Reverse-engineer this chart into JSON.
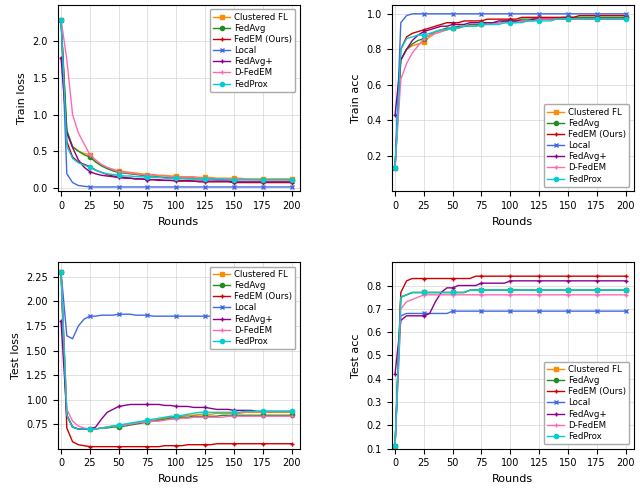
{
  "methods": [
    "Clustered FL",
    "FedAvg",
    "FedEM (Ours)",
    "Local",
    "FedAvg+",
    "D-FedEM",
    "FedProx"
  ],
  "colors": [
    "#ff8c00",
    "#228B22",
    "#cc0000",
    "#4169e1",
    "#8b008b",
    "#ff69b4",
    "#00ced1"
  ],
  "markers": [
    "s",
    "o",
    "+",
    "x",
    "+",
    "+",
    "o"
  ],
  "marker_sizes": [
    4,
    4,
    5,
    5,
    5,
    5,
    4
  ],
  "rounds": [
    0,
    5,
    10,
    15,
    20,
    25,
    30,
    35,
    40,
    45,
    50,
    55,
    60,
    65,
    70,
    75,
    80,
    85,
    90,
    95,
    100,
    105,
    110,
    115,
    120,
    125,
    130,
    135,
    140,
    145,
    150,
    155,
    160,
    165,
    170,
    175,
    180,
    185,
    190,
    195,
    200
  ],
  "train_loss": {
    "Clustered FL": [
      2.3,
      0.78,
      0.56,
      0.5,
      0.47,
      0.45,
      0.36,
      0.31,
      0.27,
      0.25,
      0.23,
      0.22,
      0.21,
      0.2,
      0.19,
      0.18,
      0.18,
      0.17,
      0.17,
      0.16,
      0.16,
      0.15,
      0.15,
      0.15,
      0.14,
      0.14,
      0.14,
      0.13,
      0.13,
      0.13,
      0.13,
      0.13,
      0.12,
      0.12,
      0.12,
      0.12,
      0.12,
      0.12,
      0.12,
      0.12,
      0.12
    ],
    "FedAvg": [
      2.3,
      0.78,
      0.56,
      0.5,
      0.45,
      0.42,
      0.35,
      0.3,
      0.26,
      0.23,
      0.21,
      0.2,
      0.19,
      0.18,
      0.17,
      0.16,
      0.16,
      0.15,
      0.14,
      0.14,
      0.13,
      0.13,
      0.13,
      0.12,
      0.12,
      0.12,
      0.12,
      0.11,
      0.11,
      0.11,
      0.11,
      0.11,
      0.11,
      0.11,
      0.11,
      0.11,
      0.11,
      0.11,
      0.11,
      0.11,
      0.11
    ],
    "FedEM (Ours)": [
      2.3,
      0.63,
      0.42,
      0.35,
      0.32,
      0.29,
      0.24,
      0.21,
      0.18,
      0.16,
      0.15,
      0.14,
      0.13,
      0.12,
      0.12,
      0.11,
      0.11,
      0.1,
      0.1,
      0.1,
      0.09,
      0.09,
      0.09,
      0.09,
      0.08,
      0.08,
      0.08,
      0.08,
      0.08,
      0.08,
      0.07,
      0.07,
      0.07,
      0.07,
      0.07,
      0.07,
      0.07,
      0.07,
      0.07,
      0.07,
      0.07
    ],
    "Local": [
      2.3,
      0.19,
      0.07,
      0.03,
      0.02,
      0.01,
      0.01,
      0.01,
      0.01,
      0.01,
      0.01,
      0.01,
      0.01,
      0.01,
      0.01,
      0.01,
      0.01,
      0.01,
      0.01,
      0.01,
      0.01,
      0.01,
      0.01,
      0.01,
      0.01,
      0.01,
      0.01,
      0.01,
      0.01,
      0.01,
      0.01,
      0.01,
      0.01,
      0.01,
      0.01,
      0.01,
      0.01,
      0.01,
      0.01,
      0.01,
      0.01
    ],
    "FedAvg+": [
      1.78,
      0.75,
      0.55,
      0.38,
      0.28,
      0.22,
      0.19,
      0.17,
      0.16,
      0.15,
      0.14,
      0.13,
      0.13,
      0.12,
      0.12,
      0.11,
      0.11,
      0.11,
      0.1,
      0.1,
      0.1,
      0.1,
      0.1,
      0.09,
      0.09,
      0.09,
      0.09,
      0.09,
      0.09,
      0.09,
      0.08,
      0.08,
      0.08,
      0.08,
      0.08,
      0.08,
      0.08,
      0.08,
      0.08,
      0.08,
      0.08
    ],
    "D-FedEM": [
      2.3,
      1.75,
      1.0,
      0.75,
      0.6,
      0.45,
      0.38,
      0.32,
      0.28,
      0.25,
      0.22,
      0.21,
      0.2,
      0.19,
      0.18,
      0.17,
      0.17,
      0.16,
      0.16,
      0.15,
      0.15,
      0.14,
      0.14,
      0.14,
      0.13,
      0.13,
      0.13,
      0.12,
      0.12,
      0.12,
      0.12,
      0.12,
      0.12,
      0.11,
      0.11,
      0.11,
      0.11,
      0.11,
      0.11,
      0.11,
      0.11
    ],
    "FedProx": [
      2.3,
      0.57,
      0.4,
      0.34,
      0.31,
      0.28,
      0.24,
      0.21,
      0.19,
      0.18,
      0.17,
      0.16,
      0.16,
      0.15,
      0.15,
      0.14,
      0.14,
      0.14,
      0.13,
      0.13,
      0.13,
      0.13,
      0.12,
      0.12,
      0.12,
      0.12,
      0.12,
      0.12,
      0.12,
      0.11,
      0.11,
      0.11,
      0.11,
      0.11,
      0.11,
      0.11,
      0.11,
      0.11,
      0.11,
      0.11,
      0.11
    ]
  },
  "train_acc": {
    "Clustered FL": [
      0.13,
      0.74,
      0.8,
      0.82,
      0.83,
      0.84,
      0.87,
      0.89,
      0.9,
      0.91,
      0.92,
      0.92,
      0.93,
      0.93,
      0.93,
      0.94,
      0.94,
      0.95,
      0.95,
      0.95,
      0.96,
      0.96,
      0.96,
      0.96,
      0.97,
      0.97,
      0.97,
      0.97,
      0.97,
      0.97,
      0.97,
      0.97,
      0.97,
      0.97,
      0.97,
      0.97,
      0.97,
      0.97,
      0.97,
      0.97,
      0.98
    ],
    "FedAvg": [
      0.13,
      0.74,
      0.8,
      0.83,
      0.85,
      0.86,
      0.88,
      0.9,
      0.91,
      0.92,
      0.92,
      0.93,
      0.93,
      0.94,
      0.94,
      0.94,
      0.95,
      0.95,
      0.95,
      0.96,
      0.96,
      0.96,
      0.97,
      0.97,
      0.97,
      0.97,
      0.97,
      0.97,
      0.97,
      0.98,
      0.98,
      0.98,
      0.98,
      0.98,
      0.98,
      0.98,
      0.98,
      0.98,
      0.98,
      0.98,
      0.98
    ],
    "FedEM (Ours)": [
      0.13,
      0.8,
      0.87,
      0.89,
      0.9,
      0.91,
      0.92,
      0.93,
      0.94,
      0.95,
      0.95,
      0.95,
      0.96,
      0.96,
      0.96,
      0.96,
      0.97,
      0.97,
      0.97,
      0.97,
      0.97,
      0.97,
      0.98,
      0.98,
      0.98,
      0.98,
      0.98,
      0.98,
      0.98,
      0.98,
      0.98,
      0.98,
      0.99,
      0.99,
      0.99,
      0.99,
      0.99,
      0.99,
      0.99,
      0.99,
      0.99
    ],
    "Local": [
      0.13,
      0.95,
      0.99,
      1.0,
      1.0,
      1.0,
      1.0,
      1.0,
      1.0,
      1.0,
      1.0,
      1.0,
      1.0,
      1.0,
      1.0,
      1.0,
      1.0,
      1.0,
      1.0,
      1.0,
      1.0,
      1.0,
      1.0,
      1.0,
      1.0,
      1.0,
      1.0,
      1.0,
      1.0,
      1.0,
      1.0,
      1.0,
      1.0,
      1.0,
      1.0,
      1.0,
      1.0,
      1.0,
      1.0,
      1.0,
      1.0
    ],
    "FedAvg+": [
      0.43,
      0.74,
      0.8,
      0.85,
      0.88,
      0.9,
      0.91,
      0.92,
      0.93,
      0.93,
      0.94,
      0.94,
      0.94,
      0.95,
      0.95,
      0.95,
      0.95,
      0.95,
      0.96,
      0.96,
      0.96,
      0.96,
      0.96,
      0.96,
      0.97,
      0.97,
      0.97,
      0.97,
      0.97,
      0.97,
      0.97,
      0.97,
      0.97,
      0.97,
      0.97,
      0.97,
      0.97,
      0.97,
      0.97,
      0.97,
      0.97
    ],
    "D-FedEM": [
      0.13,
      0.63,
      0.72,
      0.78,
      0.82,
      0.86,
      0.88,
      0.89,
      0.9,
      0.91,
      0.92,
      0.92,
      0.93,
      0.93,
      0.93,
      0.94,
      0.94,
      0.94,
      0.95,
      0.95,
      0.95,
      0.95,
      0.96,
      0.96,
      0.96,
      0.97,
      0.97,
      0.97,
      0.97,
      0.97,
      0.97,
      0.97,
      0.97,
      0.97,
      0.97,
      0.97,
      0.97,
      0.97,
      0.97,
      0.97,
      0.97
    ],
    "FedProx": [
      0.13,
      0.8,
      0.86,
      0.87,
      0.88,
      0.88,
      0.89,
      0.9,
      0.91,
      0.91,
      0.92,
      0.92,
      0.93,
      0.93,
      0.93,
      0.94,
      0.94,
      0.94,
      0.94,
      0.95,
      0.95,
      0.95,
      0.95,
      0.96,
      0.96,
      0.96,
      0.96,
      0.96,
      0.97,
      0.97,
      0.97,
      0.97,
      0.97,
      0.97,
      0.97,
      0.97,
      0.97,
      0.97,
      0.97,
      0.97,
      0.97
    ]
  },
  "test_loss": {
    "Clustered FL": [
      2.3,
      0.84,
      0.72,
      0.7,
      0.7,
      0.7,
      0.7,
      0.71,
      0.72,
      0.73,
      0.73,
      0.74,
      0.75,
      0.76,
      0.77,
      0.78,
      0.79,
      0.8,
      0.81,
      0.82,
      0.83,
      0.83,
      0.84,
      0.84,
      0.85,
      0.85,
      0.85,
      0.86,
      0.86,
      0.86,
      0.86,
      0.86,
      0.87,
      0.87,
      0.87,
      0.87,
      0.87,
      0.87,
      0.87,
      0.87,
      0.87
    ],
    "FedAvg": [
      2.3,
      0.84,
      0.72,
      0.7,
      0.7,
      0.7,
      0.7,
      0.71,
      0.71,
      0.72,
      0.72,
      0.73,
      0.74,
      0.75,
      0.76,
      0.77,
      0.78,
      0.79,
      0.8,
      0.81,
      0.82,
      0.82,
      0.82,
      0.83,
      0.83,
      0.83,
      0.83,
      0.83,
      0.84,
      0.84,
      0.84,
      0.84,
      0.84,
      0.84,
      0.84,
      0.84,
      0.84,
      0.84,
      0.84,
      0.84,
      0.84
    ],
    "FedEM (Ours)": [
      2.3,
      0.71,
      0.57,
      0.54,
      0.53,
      0.52,
      0.52,
      0.52,
      0.52,
      0.52,
      0.52,
      0.52,
      0.52,
      0.52,
      0.52,
      0.52,
      0.52,
      0.52,
      0.53,
      0.53,
      0.53,
      0.53,
      0.54,
      0.54,
      0.54,
      0.54,
      0.54,
      0.55,
      0.55,
      0.55,
      0.55,
      0.55,
      0.55,
      0.55,
      0.55,
      0.55,
      0.55,
      0.55,
      0.55,
      0.55,
      0.55
    ],
    "Local": [
      2.3,
      1.65,
      1.62,
      1.75,
      1.82,
      1.85,
      1.85,
      1.86,
      1.86,
      1.86,
      1.87,
      1.87,
      1.87,
      1.86,
      1.86,
      1.86,
      1.85,
      1.85,
      1.85,
      1.85,
      1.85,
      1.85,
      1.85,
      1.85,
      1.85,
      1.85,
      1.85,
      1.85,
      1.85,
      1.85,
      1.85,
      1.85,
      1.85,
      1.85,
      1.85,
      1.85,
      1.85,
      1.85,
      1.85,
      1.85,
      1.85
    ],
    "FedAvg+": [
      1.8,
      0.84,
      0.72,
      0.7,
      0.7,
      0.7,
      0.72,
      0.8,
      0.87,
      0.9,
      0.93,
      0.94,
      0.95,
      0.95,
      0.95,
      0.95,
      0.95,
      0.95,
      0.94,
      0.94,
      0.93,
      0.93,
      0.93,
      0.92,
      0.92,
      0.92,
      0.91,
      0.9,
      0.9,
      0.9,
      0.89,
      0.89,
      0.89,
      0.89,
      0.88,
      0.88,
      0.88,
      0.88,
      0.88,
      0.88,
      0.88
    ],
    "D-FedEM": [
      2.3,
      0.9,
      0.78,
      0.73,
      0.71,
      0.7,
      0.7,
      0.71,
      0.72,
      0.73,
      0.73,
      0.74,
      0.75,
      0.76,
      0.77,
      0.77,
      0.78,
      0.78,
      0.79,
      0.8,
      0.8,
      0.81,
      0.81,
      0.82,
      0.82,
      0.82,
      0.82,
      0.82,
      0.82,
      0.83,
      0.83,
      0.83,
      0.83,
      0.83,
      0.83,
      0.83,
      0.83,
      0.83,
      0.83,
      0.83,
      0.83
    ],
    "FedProx": [
      2.3,
      0.84,
      0.72,
      0.7,
      0.7,
      0.7,
      0.7,
      0.71,
      0.72,
      0.73,
      0.74,
      0.75,
      0.76,
      0.77,
      0.78,
      0.79,
      0.8,
      0.81,
      0.82,
      0.83,
      0.83,
      0.84,
      0.85,
      0.86,
      0.87,
      0.87,
      0.87,
      0.87,
      0.87,
      0.87,
      0.87,
      0.87,
      0.88,
      0.88,
      0.88,
      0.88,
      0.88,
      0.88,
      0.88,
      0.88,
      0.88
    ]
  },
  "test_acc": {
    "Clustered FL": [
      0.11,
      0.75,
      0.76,
      0.77,
      0.77,
      0.77,
      0.77,
      0.77,
      0.77,
      0.77,
      0.77,
      0.77,
      0.77,
      0.78,
      0.78,
      0.78,
      0.78,
      0.78,
      0.78,
      0.78,
      0.78,
      0.78,
      0.78,
      0.78,
      0.78,
      0.78,
      0.78,
      0.78,
      0.78,
      0.78,
      0.78,
      0.78,
      0.78,
      0.78,
      0.78,
      0.78,
      0.78,
      0.78,
      0.78,
      0.78,
      0.78
    ],
    "FedAvg": [
      0.11,
      0.75,
      0.76,
      0.77,
      0.77,
      0.77,
      0.77,
      0.77,
      0.77,
      0.77,
      0.77,
      0.77,
      0.77,
      0.78,
      0.78,
      0.78,
      0.78,
      0.78,
      0.78,
      0.78,
      0.78,
      0.78,
      0.78,
      0.78,
      0.78,
      0.78,
      0.78,
      0.78,
      0.78,
      0.78,
      0.78,
      0.78,
      0.78,
      0.78,
      0.78,
      0.78,
      0.78,
      0.78,
      0.78,
      0.78,
      0.78
    ],
    "FedEM (Ours)": [
      0.11,
      0.77,
      0.82,
      0.83,
      0.83,
      0.83,
      0.83,
      0.83,
      0.83,
      0.83,
      0.83,
      0.83,
      0.83,
      0.83,
      0.84,
      0.84,
      0.84,
      0.84,
      0.84,
      0.84,
      0.84,
      0.84,
      0.84,
      0.84,
      0.84,
      0.84,
      0.84,
      0.84,
      0.84,
      0.84,
      0.84,
      0.84,
      0.84,
      0.84,
      0.84,
      0.84,
      0.84,
      0.84,
      0.84,
      0.84,
      0.84
    ],
    "Local": [
      0.11,
      0.67,
      0.68,
      0.68,
      0.68,
      0.68,
      0.68,
      0.68,
      0.68,
      0.68,
      0.69,
      0.69,
      0.69,
      0.69,
      0.69,
      0.69,
      0.69,
      0.69,
      0.69,
      0.69,
      0.69,
      0.69,
      0.69,
      0.69,
      0.69,
      0.69,
      0.69,
      0.69,
      0.69,
      0.69,
      0.69,
      0.69,
      0.69,
      0.69,
      0.69,
      0.69,
      0.69,
      0.69,
      0.69,
      0.69,
      0.69
    ],
    "FedAvg+": [
      0.42,
      0.65,
      0.67,
      0.67,
      0.67,
      0.67,
      0.68,
      0.73,
      0.77,
      0.79,
      0.79,
      0.8,
      0.8,
      0.8,
      0.8,
      0.81,
      0.81,
      0.81,
      0.81,
      0.81,
      0.82,
      0.82,
      0.82,
      0.82,
      0.82,
      0.82,
      0.82,
      0.82,
      0.82,
      0.82,
      0.82,
      0.82,
      0.82,
      0.82,
      0.82,
      0.82,
      0.82,
      0.82,
      0.82,
      0.82,
      0.82
    ],
    "D-FedEM": [
      0.11,
      0.7,
      0.73,
      0.74,
      0.75,
      0.76,
      0.76,
      0.76,
      0.76,
      0.76,
      0.76,
      0.76,
      0.76,
      0.76,
      0.76,
      0.76,
      0.76,
      0.76,
      0.76,
      0.76,
      0.76,
      0.76,
      0.76,
      0.76,
      0.76,
      0.76,
      0.76,
      0.76,
      0.76,
      0.76,
      0.76,
      0.76,
      0.76,
      0.76,
      0.76,
      0.76,
      0.76,
      0.76,
      0.76,
      0.76,
      0.76
    ],
    "FedProx": [
      0.11,
      0.75,
      0.76,
      0.77,
      0.77,
      0.77,
      0.77,
      0.77,
      0.77,
      0.77,
      0.77,
      0.77,
      0.77,
      0.78,
      0.78,
      0.78,
      0.78,
      0.78,
      0.78,
      0.78,
      0.78,
      0.78,
      0.78,
      0.78,
      0.78,
      0.78,
      0.78,
      0.78,
      0.78,
      0.78,
      0.78,
      0.78,
      0.78,
      0.78,
      0.78,
      0.78,
      0.78,
      0.78,
      0.78,
      0.78,
      0.78
    ]
  },
  "ylim_train_loss": [
    -0.05,
    2.5
  ],
  "ylim_train_acc": [
    0.0,
    1.05
  ],
  "ylim_test_loss": [
    0.5,
    2.4
  ],
  "ylim_test_acc": [
    0.1,
    0.9
  ],
  "xlabel": "Rounds",
  "ylabel_train_loss": "Train loss",
  "ylabel_train_acc": "Train acc",
  "ylabel_test_loss": "Test loss",
  "ylabel_test_acc": "Test acc",
  "xticks": [
    0,
    25,
    50,
    75,
    100,
    125,
    150,
    175,
    200
  ],
  "yticks_train_loss": [
    0.0,
    0.5,
    1.0,
    1.5,
    2.0
  ],
  "yticks_train_acc": [
    0.2,
    0.4,
    0.6,
    0.8,
    1.0
  ],
  "yticks_test_loss": [
    0.75,
    1.0,
    1.25,
    1.5,
    1.75,
    2.0,
    2.25
  ],
  "yticks_test_acc": [
    0.1,
    0.2,
    0.3,
    0.4,
    0.5,
    0.6,
    0.7,
    0.8
  ],
  "grid_color": "#cccccc",
  "grid_alpha": 0.8,
  "marker_size": 3,
  "linewidth": 1.0,
  "markevery": 5
}
